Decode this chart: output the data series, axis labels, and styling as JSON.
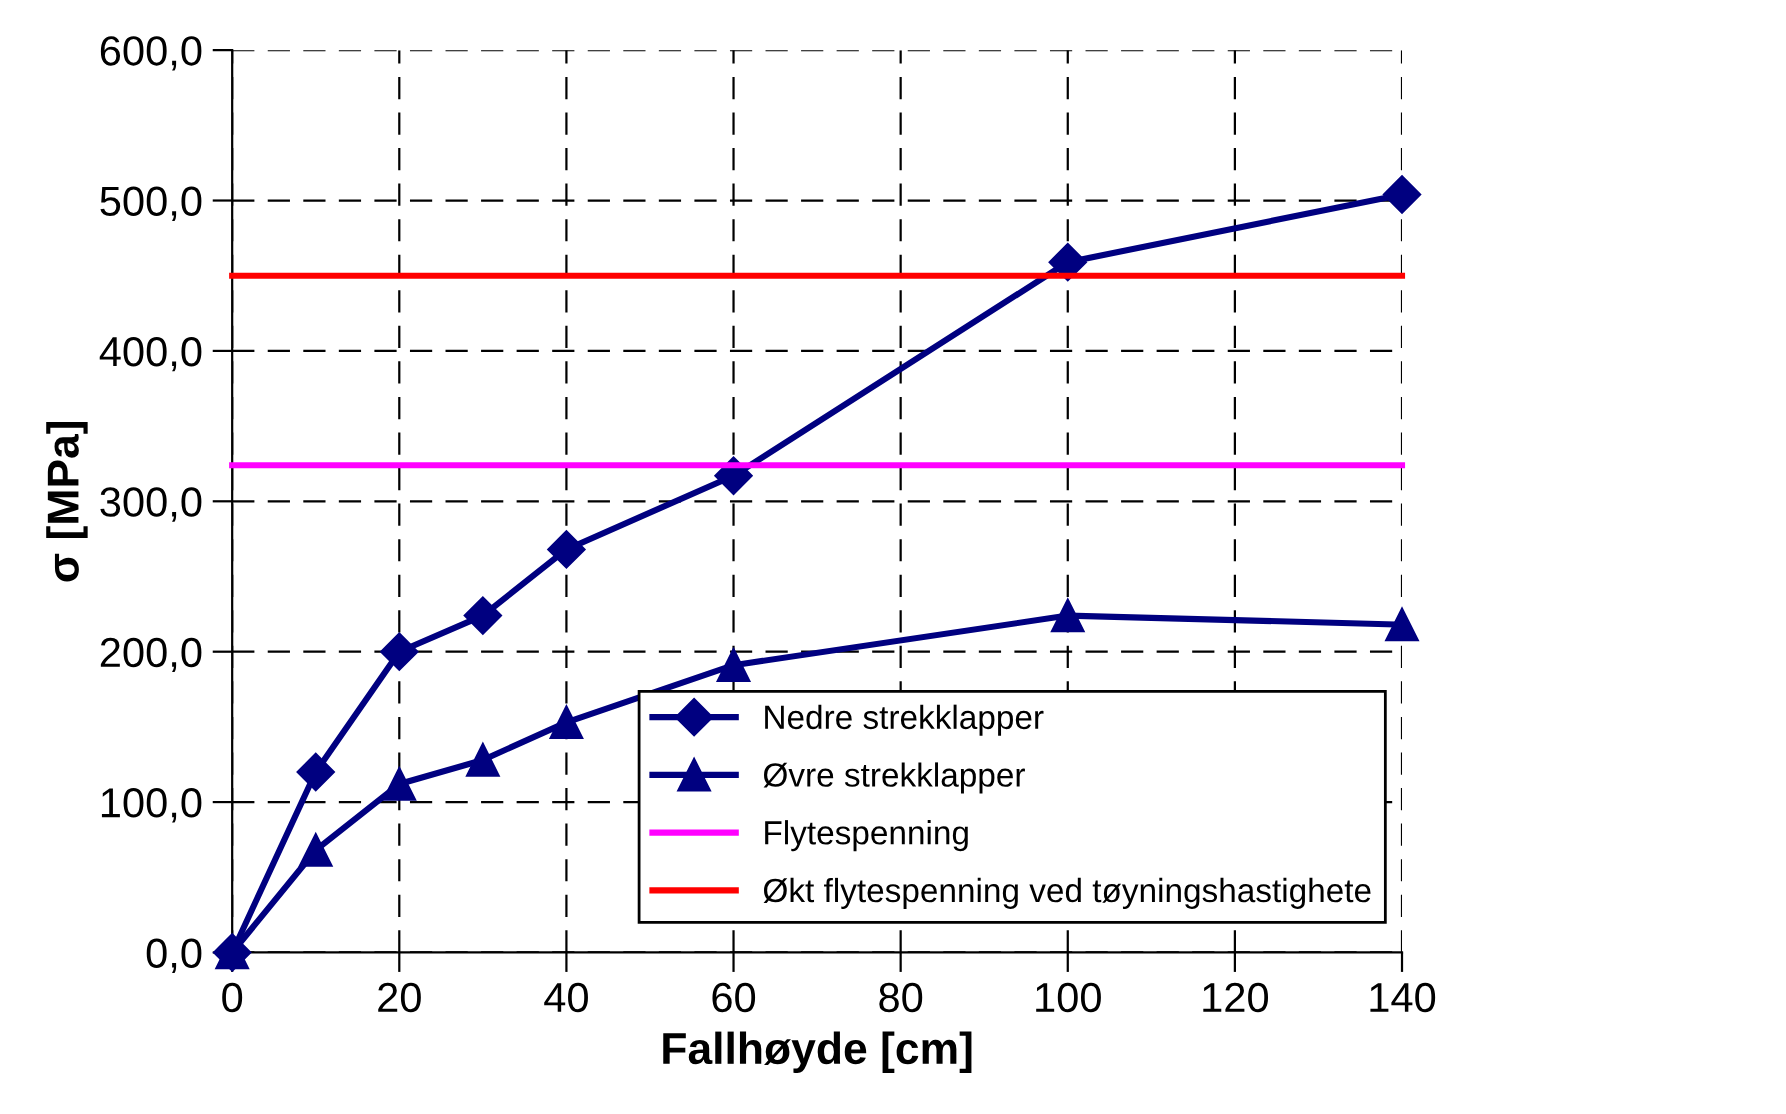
{
  "chart_data": {
    "type": "line",
    "xlabel": "Fallhøyde [cm]",
    "ylabel": "σ [MPa]",
    "xlim": [
      0,
      140
    ],
    "xticks": [
      0,
      20,
      40,
      60,
      80,
      100,
      120,
      140
    ],
    "ylim": [
      0,
      600
    ],
    "yticks": [
      {
        "value": 0,
        "label": "0,0"
      },
      {
        "value": 100,
        "label": "100,0"
      },
      {
        "value": 200,
        "label": "200,0"
      },
      {
        "value": 300,
        "label": "300,0"
      },
      {
        "value": 400,
        "label": "400,0"
      },
      {
        "value": 500,
        "label": "500,0"
      },
      {
        "value": 600,
        "label": "600,0"
      }
    ],
    "grid": true,
    "legend": "bottom right",
    "series": [
      {
        "name": "Nedre strekklapper",
        "color": "#000080",
        "marker": "diamond",
        "x": [
          0,
          10,
          20,
          30,
          40,
          60,
          100,
          140
        ],
        "values": [
          0,
          120,
          200,
          224,
          268,
          317,
          459,
          504
        ]
      },
      {
        "name": "Øvre strekklapper",
        "color": "#000080",
        "marker": "triangle",
        "x": [
          0,
          10,
          20,
          30,
          40,
          60,
          100,
          140
        ],
        "values": [
          0,
          68,
          112,
          128,
          153,
          191,
          224,
          218
        ]
      },
      {
        "name": "Flytespenning",
        "color": "#ff00ff",
        "marker": "none",
        "x": [
          0,
          140
        ],
        "values": [
          324,
          324
        ]
      },
      {
        "name": "Økt flytespenning ved tøyningshastighete",
        "color": "#ff0000",
        "marker": "none",
        "x": [
          0,
          140
        ],
        "values": [
          450,
          450
        ]
      }
    ]
  }
}
